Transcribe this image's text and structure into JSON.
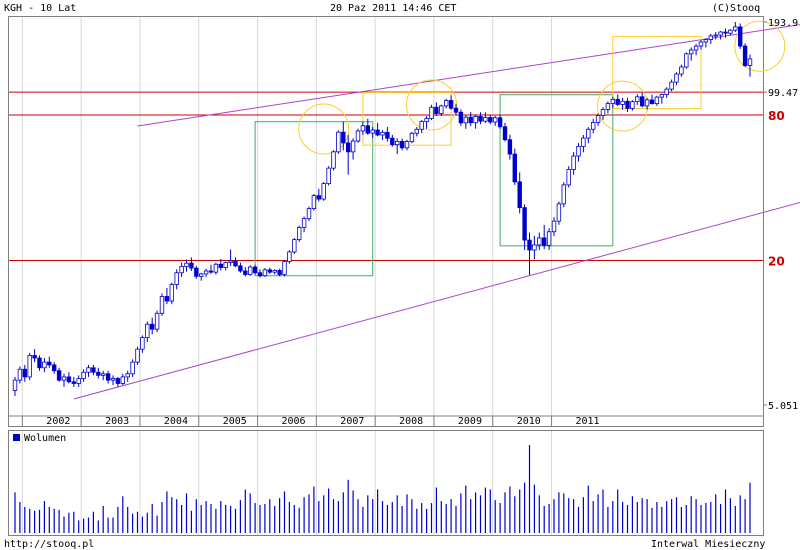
{
  "header": {
    "symbol": "KGH - 10 Lat",
    "datetime": "20 Paz 2011 14:46 CET",
    "copyright": "(C)Stooq"
  },
  "footer": {
    "url": "http://stooq.pl",
    "interval": "Interwal Miesieczny"
  },
  "chart_data": [
    {
      "type": "candlestick",
      "title": "KGH - 10 Lat",
      "y_scale": "log",
      "ylim": [
        5.051,
        193.9
      ],
      "y_tick_labels": [
        "193.9",
        "99.47",
        "5.051"
      ],
      "level_labels": [
        "80",
        "20"
      ],
      "levels": [
        99.47,
        80,
        20
      ],
      "x_tick_labels": [
        "2002",
        "2003",
        "2004",
        "2005",
        "2006",
        "2007",
        "2008",
        "2009",
        "2010",
        "2011"
      ],
      "colors": {
        "up": "#ffffff",
        "down": "#0000cc",
        "line": "#0000cc",
        "level": "#cc0000",
        "channel": "#aa44cc",
        "box_green": "#44aa66",
        "box_yellow": "#ffcc33"
      },
      "ohlc": [
        [
          5.8,
          6.6,
          5.5,
          6.4
        ],
        [
          6.4,
          7.3,
          6.2,
          7.1
        ],
        [
          7.1,
          7.4,
          6.3,
          6.6
        ],
        [
          6.6,
          8.3,
          6.4,
          8.1
        ],
        [
          8.1,
          8.6,
          7.6,
          7.9
        ],
        [
          7.9,
          8.1,
          7.0,
          7.2
        ],
        [
          7.2,
          7.9,
          6.9,
          7.6
        ],
        [
          7.6,
          8.0,
          7.2,
          7.4
        ],
        [
          7.4,
          7.6,
          6.8,
          7.0
        ],
        [
          7.0,
          7.2,
          6.3,
          6.4
        ],
        [
          6.4,
          6.8,
          6.0,
          6.6
        ],
        [
          6.6,
          6.9,
          6.2,
          6.3
        ],
        [
          6.3,
          6.6,
          6.0,
          6.2
        ],
        [
          6.2,
          6.7,
          6.0,
          6.5
        ],
        [
          6.5,
          7.1,
          6.3,
          6.9
        ],
        [
          6.9,
          7.4,
          6.6,
          7.2
        ],
        [
          7.2,
          7.4,
          6.7,
          6.9
        ],
        [
          6.9,
          7.2,
          6.5,
          6.7
        ],
        [
          6.7,
          7.0,
          6.4,
          6.8
        ],
        [
          6.8,
          7.0,
          6.2,
          6.4
        ],
        [
          6.4,
          6.7,
          6.1,
          6.5
        ],
        [
          6.5,
          6.6,
          6.0,
          6.2
        ],
        [
          6.2,
          6.8,
          6.1,
          6.6
        ],
        [
          6.6,
          7.0,
          6.3,
          6.8
        ],
        [
          6.8,
          7.8,
          6.6,
          7.6
        ],
        [
          7.6,
          8.8,
          7.4,
          8.6
        ],
        [
          8.6,
          9.8,
          8.3,
          9.6
        ],
        [
          9.6,
          11.2,
          9.2,
          10.9
        ],
        [
          10.9,
          11.6,
          9.9,
          10.4
        ],
        [
          10.4,
          12.4,
          10.1,
          12.1
        ],
        [
          12.1,
          14.6,
          11.8,
          14.2
        ],
        [
          14.2,
          15.4,
          13.2,
          13.6
        ],
        [
          13.6,
          16.2,
          13.2,
          15.9
        ],
        [
          15.9,
          18.4,
          15.2,
          17.8
        ],
        [
          17.8,
          19.6,
          17.1,
          18.9
        ],
        [
          18.9,
          20.2,
          18.0,
          19.5
        ],
        [
          19.5,
          20.6,
          18.1,
          18.6
        ],
        [
          18.6,
          19.0,
          16.8,
          17.2
        ],
        [
          17.2,
          17.8,
          16.5,
          17.6
        ],
        [
          17.6,
          18.5,
          17.1,
          18.1
        ],
        [
          18.1,
          19.2,
          17.6,
          17.9
        ],
        [
          17.9,
          19.6,
          17.5,
          19.3
        ],
        [
          19.3,
          20.3,
          18.2,
          18.7
        ],
        [
          18.7,
          19.8,
          18.2,
          19.6
        ],
        [
          19.6,
          22.2,
          19.0,
          19.9
        ],
        [
          19.9,
          20.6,
          18.8,
          19.0
        ],
        [
          19.0,
          19.6,
          17.8,
          18.1
        ],
        [
          18.1,
          18.8,
          17.2,
          17.5
        ],
        [
          17.5,
          19.1,
          17.3,
          18.8
        ],
        [
          18.8,
          19.2,
          17.5,
          17.8
        ],
        [
          17.8,
          18.4,
          17.0,
          17.3
        ],
        [
          17.3,
          18.6,
          17.1,
          18.3
        ],
        [
          18.3,
          18.7,
          17.6,
          17.9
        ],
        [
          17.9,
          18.4,
          17.5,
          18.2
        ],
        [
          18.2,
          18.5,
          17.2,
          17.5
        ],
        [
          17.5,
          20.1,
          17.2,
          19.8
        ],
        [
          19.8,
          22.1,
          19.4,
          21.7
        ],
        [
          21.7,
          24.8,
          21.3,
          24.4
        ],
        [
          24.4,
          27.9,
          23.9,
          27.4
        ],
        [
          27.4,
          30.4,
          26.2,
          29.8
        ],
        [
          29.8,
          33.4,
          29.1,
          32.8
        ],
        [
          32.8,
          37.7,
          32.2,
          37.1
        ],
        [
          37.1,
          39.6,
          35.1,
          35.9
        ],
        [
          35.9,
          42.3,
          35.3,
          41.6
        ],
        [
          41.6,
          49.1,
          40.9,
          48.2
        ],
        [
          48.2,
          57.1,
          47.2,
          56.3
        ],
        [
          56.3,
          69.1,
          55.3,
          67.9
        ],
        [
          67.9,
          75.1,
          57.1,
          61.3
        ],
        [
          61.3,
          66.1,
          45.3,
          56.3
        ],
        [
          56.3,
          64.1,
          52.3,
          62.4
        ],
        [
          62.4,
          70.2,
          61.3,
          68.7
        ],
        [
          68.7,
          75.2,
          66.1,
          72.2
        ],
        [
          72.2,
          77.2,
          66.2,
          67.3
        ],
        [
          67.3,
          71.2,
          64.2,
          69.3
        ],
        [
          69.3,
          74.2,
          65.3,
          66.1
        ],
        [
          66.1,
          69.2,
          63.1,
          67.8
        ],
        [
          67.8,
          71.3,
          62.1,
          64.1
        ],
        [
          64.1,
          66.2,
          59.1,
          60.3
        ],
        [
          60.3,
          64.1,
          55.1,
          62.2
        ],
        [
          62.2,
          63.9,
          57.1,
          58.5
        ],
        [
          58.5,
          63.2,
          57.1,
          62.1
        ],
        [
          62.1,
          68.1,
          61.1,
          67.2
        ],
        [
          67.2,
          71.3,
          65.2,
          69.8
        ],
        [
          69.8,
          76.2,
          67.3,
          75.1
        ],
        [
          75.1,
          79.2,
          70.1,
          77.3
        ],
        [
          77.3,
          88.1,
          76.2,
          86.1
        ],
        [
          86.1,
          90.2,
          79.2,
          81.1
        ],
        [
          81.1,
          88.3,
          79.2,
          87.2
        ],
        [
          87.2,
          93.3,
          85.1,
          91.8
        ],
        [
          91.8,
          96.4,
          84.1,
          85.3
        ],
        [
          85.3,
          89.1,
          80.2,
          82.1
        ],
        [
          82.1,
          84.3,
          72.1,
          74.2
        ],
        [
          74.2,
          80.1,
          70.1,
          78.3
        ],
        [
          78.3,
          82.2,
          72.1,
          74.3
        ],
        [
          74.3,
          80.3,
          70.2,
          78.9
        ],
        [
          78.9,
          82.1,
          73.3,
          75.4
        ],
        [
          75.4,
          82.1,
          74.2,
          78.1
        ],
        [
          78.1,
          80.1,
          73.2,
          74.8
        ],
        [
          74.8,
          79.3,
          72.1,
          77.9
        ],
        [
          77.9,
          80.2,
          70.1,
          71.5
        ],
        [
          71.5,
          74.2,
          62.1,
          63.2
        ],
        [
          63.2,
          66.3,
          52.3,
          55.1
        ],
        [
          55.1,
          58.1,
          41.1,
          42.3
        ],
        [
          42.3,
          46.3,
          31.3,
          33.1
        ],
        [
          33.1,
          34.1,
          22.1,
          24.3
        ],
        [
          24.3,
          26.1,
          17.4,
          22.1
        ],
        [
          22.1,
          25.3,
          20.2,
          23.2
        ],
        [
          23.2,
          26.1,
          22.1,
          24.8
        ],
        [
          24.8,
          28.1,
          22.3,
          23.1
        ],
        [
          23.1,
          27.2,
          22.1,
          26.3
        ],
        [
          26.3,
          30.2,
          25.2,
          29.1
        ],
        [
          29.1,
          35.1,
          28.1,
          34.3
        ],
        [
          34.3,
          42.2,
          33.2,
          41.1
        ],
        [
          41.1,
          49.1,
          40.1,
          47.6
        ],
        [
          47.6,
          56.2,
          45.3,
          54.1
        ],
        [
          54.1,
          61.2,
          51.3,
          59.3
        ],
        [
          59.3,
          66.1,
          56.1,
          64.2
        ],
        [
          64.2,
          71.2,
          61.1,
          69.8
        ],
        [
          69.8,
          77.1,
          67.2,
          74.5
        ],
        [
          74.5,
          81.1,
          72.1,
          79.6
        ],
        [
          79.6,
          86.1,
          76.3,
          84.3
        ],
        [
          84.3,
          91.1,
          81.1,
          89.2
        ],
        [
          89.2,
          95.1,
          85.3,
          92.8
        ],
        [
          92.8,
          97.3,
          87.2,
          88.4
        ],
        [
          88.4,
          94.1,
          84.1,
          91.1
        ],
        [
          91.1,
          94.2,
          82.3,
          85.1
        ],
        [
          85.1,
          92.1,
          83.4,
          90.8
        ],
        [
          90.8,
          97.4,
          88.1,
          95.1
        ],
        [
          95.1,
          99.2,
          86.1,
          87.2
        ],
        [
          87.2,
          94.1,
          84.2,
          92.3
        ],
        [
          92.3,
          97.2,
          88.3,
          89.1
        ],
        [
          89.1,
          96.1,
          87.2,
          94.8
        ],
        [
          94.8,
          98.1,
          89.1,
          97.1
        ],
        [
          97.1,
          104.2,
          94.1,
          102.3
        ],
        [
          102.3,
          112.1,
          100.2,
          109.4
        ],
        [
          109.4,
          120.1,
          106.2,
          118.1
        ],
        [
          118.1,
          129.2,
          115.1,
          126.3
        ],
        [
          126.3,
          145.1,
          124.1,
          143.2
        ],
        [
          143.2,
          152.1,
          134.1,
          148.5
        ],
        [
          148.5,
          157.1,
          141.2,
          154.2
        ],
        [
          154.2,
          163.1,
          149.1,
          160.3
        ],
        [
          160.3,
          166.1,
          152.1,
          164.2
        ],
        [
          164.2,
          173.1,
          157.2,
          169.8
        ],
        [
          169.8,
          176.2,
          164.1,
          171.3
        ],
        [
          171.3,
          178.1,
          164.2,
          176.2
        ],
        [
          176.2,
          182.1,
          167.1,
          174.3
        ],
        [
          174.3,
          181.2,
          171.1,
          179.4
        ],
        [
          179.4,
          193.9,
          176.2,
          185.1
        ],
        [
          185.1,
          191.2,
          150.1,
          154.2
        ],
        [
          154.2,
          158.1,
          126.2,
          128.1
        ],
        [
          128.1,
          142.1,
          115.1,
          136.4
        ]
      ],
      "volume_legend": "Wolumen",
      "volume": [
        42,
        32,
        27,
        25,
        23,
        24,
        33,
        27,
        25,
        24,
        17,
        21,
        22,
        13,
        15,
        16,
        22,
        13,
        28,
        16,
        16,
        27,
        38,
        27,
        20,
        22,
        17,
        21,
        30,
        18,
        32,
        43,
        37,
        35,
        29,
        41,
        23,
        35,
        29,
        33,
        30,
        25,
        33,
        29,
        28,
        25,
        34,
        45,
        41,
        31,
        29,
        30,
        35,
        28,
        36,
        43,
        32,
        29,
        26,
        37,
        40,
        48,
        33,
        39,
        46,
        35,
        33,
        42,
        55,
        44,
        35,
        27,
        39,
        35,
        45,
        33,
        29,
        32,
        39,
        28,
        40,
        35,
        25,
        31,
        25,
        31,
        47,
        33,
        30,
        35,
        28,
        41,
        49,
        35,
        42,
        39,
        47,
        45,
        34,
        31,
        42,
        48,
        38,
        45,
        52,
        91,
        50,
        39,
        28,
        30,
        35,
        42,
        41,
        36,
        35,
        27,
        37,
        49,
        33,
        40,
        45,
        27,
        33,
        45,
        32,
        29,
        38,
        32,
        36,
        35,
        26,
        32,
        27,
        33,
        35,
        37,
        27,
        29,
        38,
        35,
        29,
        31,
        32,
        40,
        30,
        45,
        36,
        28,
        39,
        35,
        52
      ],
      "volume_max": 91,
      "annotations": {
        "channel_upper": [
          [
            25,
            72
          ],
          [
            163,
            193
          ]
        ],
        "channel_lower": [
          [
            12,
            5.35
          ],
          [
            163,
            36
          ]
        ],
        "green_boxes": [
          [
            49,
            73,
            17.3,
            75
          ],
          [
            99,
            122,
            23,
            97
          ]
        ],
        "yellow_boxes": [
          [
            71,
            89,
            60,
            99
          ],
          [
            122,
            140,
            85,
            169
          ]
        ],
        "yellow_circles": [
          [
            63,
            70
          ],
          [
            85,
            88
          ],
          [
            124,
            87
          ],
          [
            152,
            154
          ]
        ]
      }
    }
  ]
}
